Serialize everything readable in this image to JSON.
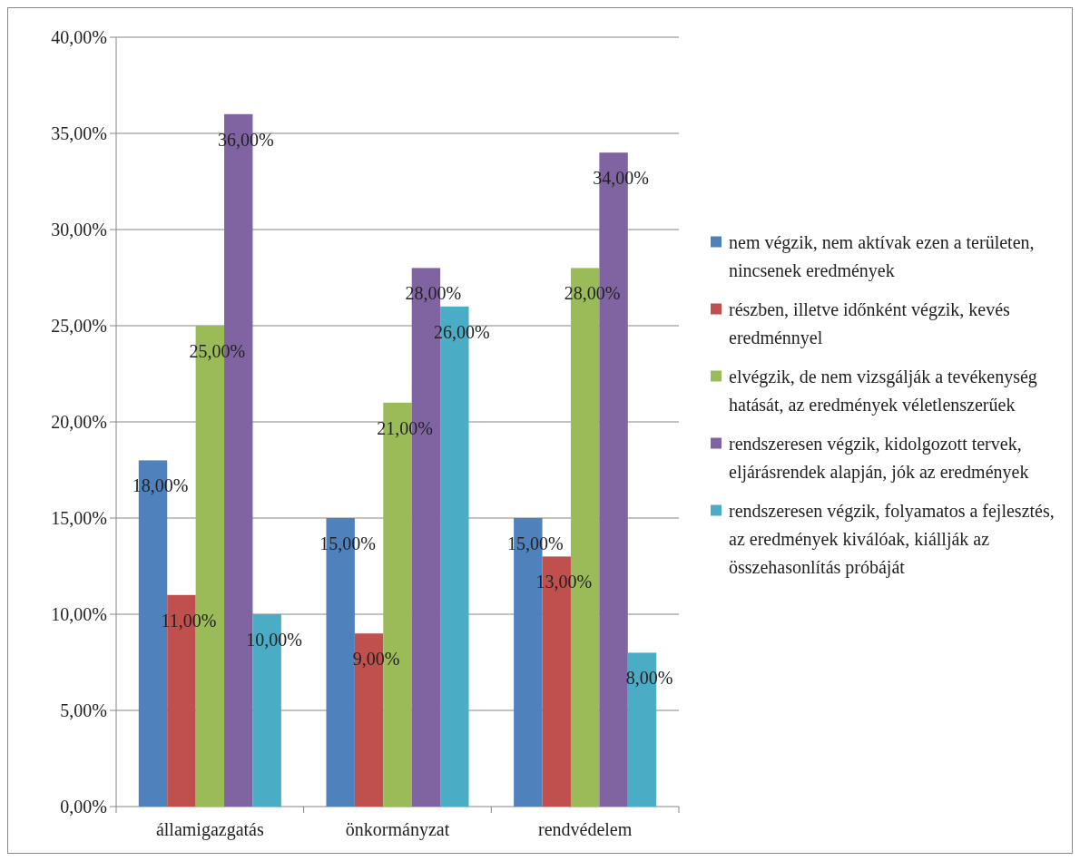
{
  "chart_data": {
    "type": "bar",
    "categories": [
      "államigazgatás",
      "önkormányzat",
      "rendvédelem"
    ],
    "ylim": [
      0,
      40
    ],
    "yticks": [
      {
        "value": 0,
        "label": "0,00%"
      },
      {
        "value": 5,
        "label": "5,00%"
      },
      {
        "value": 10,
        "label": "10,00%"
      },
      {
        "value": 15,
        "label": "15,00%"
      },
      {
        "value": 20,
        "label": "20,00%"
      },
      {
        "value": 25,
        "label": "25,00%"
      },
      {
        "value": 30,
        "label": "30,00%"
      },
      {
        "value": 35,
        "label": "35,00%"
      },
      {
        "value": 40,
        "label": "40,00%"
      }
    ],
    "grid": "y",
    "legend": "right",
    "series": [
      {
        "name": "nem végzik, nem aktívak ezen a területen, nincsenek eredmények",
        "color": "#4f81bd",
        "values": [
          18,
          15,
          15
        ],
        "value_labels": [
          "18,00%",
          "15,00%",
          "15,00%"
        ]
      },
      {
        "name": "részben, illetve időnként végzik, kevés eredménnyel",
        "color": "#c0504d",
        "values": [
          11,
          9,
          13
        ],
        "value_labels": [
          "11,00%",
          "9,00%",
          "13,00%"
        ]
      },
      {
        "name": "elvégzik, de nem vizsgálják a tevékenység hatását, az eredmények véletlenszerűek",
        "color": "#9bbb59",
        "values": [
          25,
          21,
          28
        ],
        "value_labels": [
          "25,00%",
          "21,00%",
          "28,00%"
        ]
      },
      {
        "name": "rendszeresen végzik, kidolgozott tervek, eljárásrendek alapján, jók az eredmények",
        "color": "#8064a2",
        "values": [
          36,
          28,
          34
        ],
        "value_labels": [
          "36,00%",
          "28,00%",
          "34,00%"
        ]
      },
      {
        "name": "rendszeresen végzik, folyamatos a fejlesztés, az eredmények kiválóak, kiállják az összehasonlítás próbáját",
        "color": "#4bacc6",
        "values": [
          10,
          26,
          8
        ],
        "value_labels": [
          "10,00%",
          "26,00%",
          "8,00%"
        ]
      }
    ]
  }
}
